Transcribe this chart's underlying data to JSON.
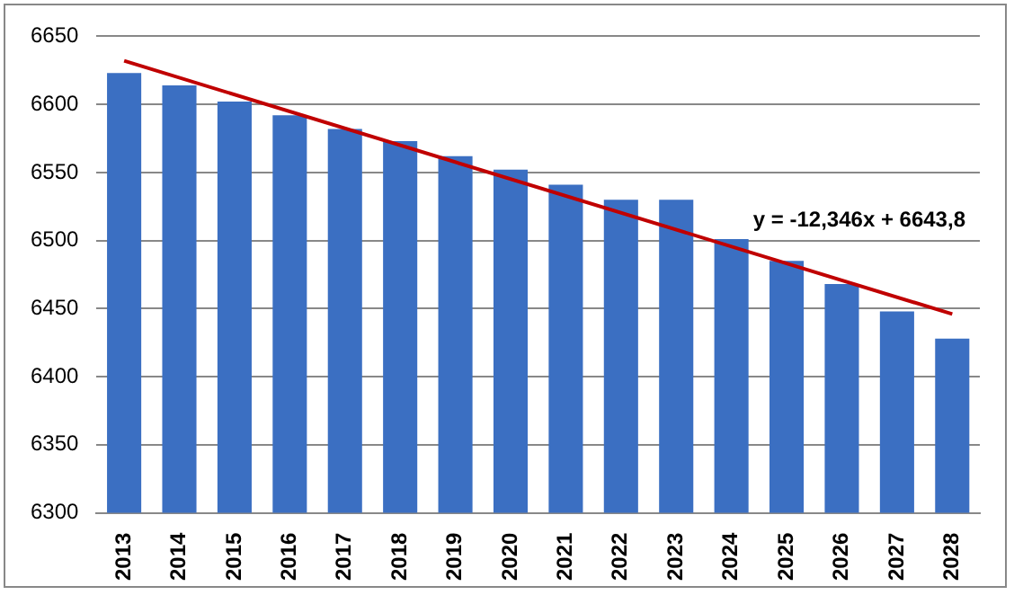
{
  "chart_data": {
    "type": "bar",
    "categories": [
      "2013",
      "2014",
      "2015",
      "2016",
      "2017",
      "2018",
      "2019",
      "2020",
      "2021",
      "2022",
      "2023",
      "2024",
      "2025",
      "2026",
      "2027",
      "2028"
    ],
    "series": [
      {
        "color": "#3b6fc2",
        "values": [
          6623,
          6614,
          6602,
          6592,
          6582,
          6573,
          6562,
          6552,
          6541,
          6530,
          6530,
          6501,
          6485,
          6468,
          6448,
          6428
        ]
      },
      {
        "type": "line",
        "color": "#c00000",
        "values": [
          6632,
          null,
          null,
          null,
          null,
          null,
          null,
          null,
          null,
          null,
          null,
          null,
          null,
          null,
          null,
          6446
        ]
      }
    ],
    "ylim": [
      6300,
      6650
    ],
    "yticks": [
      6300,
      6350,
      6400,
      6450,
      6500,
      6550,
      6600,
      6650
    ],
    "grid": "y",
    "legend": false,
    "annotations": [
      "y = -12,346x + 6643,8"
    ]
  }
}
